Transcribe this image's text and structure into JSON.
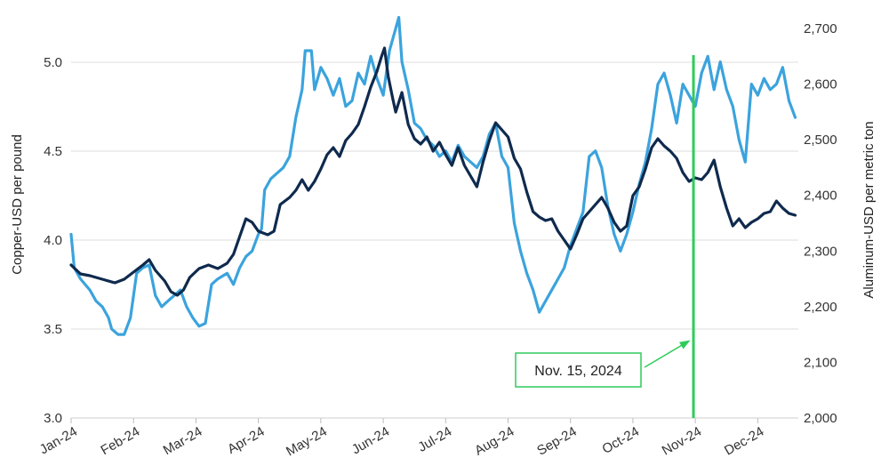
{
  "chart_data": {
    "type": "line",
    "title": "",
    "ylabel": "Copper-USD per pound",
    "y2label": "Aluminum-USD per metric ton",
    "ylim": [
      3.0,
      5.2
    ],
    "y2lim": [
      2000,
      2700
    ],
    "yticks": [
      "3.0",
      "3.5",
      "4.0",
      "4.5",
      "5.0"
    ],
    "y2ticks": [
      "2,000",
      "2,100",
      "2,200",
      "2,300",
      "2,400",
      "2,500",
      "2,600",
      "2,700"
    ],
    "xticks": [
      "Jan-24",
      "Feb-24",
      "Mar-24",
      "Apr-24",
      "May-24",
      "Jun-24",
      "Jul-24",
      "Aug-24",
      "Sep-24",
      "Oct-24",
      "Nov-24",
      "Dec-24"
    ],
    "grid": "horizontal",
    "legend": "none",
    "colors": {
      "copper": "#0f2a4d",
      "aluminum": "#3ba3dd",
      "annotation": "#2ecc5a",
      "grid": "#dddddd"
    },
    "series": [
      {
        "axis": "left",
        "color": "#0f2a4d",
        "points": [
          [
            0,
            3.86
          ],
          [
            0.15,
            3.81
          ],
          [
            0.3,
            3.8
          ],
          [
            0.5,
            3.78
          ],
          [
            0.7,
            3.76
          ],
          [
            0.85,
            3.78
          ],
          [
            1.0,
            3.82
          ],
          [
            1.15,
            3.86
          ],
          [
            1.25,
            3.89
          ],
          [
            1.35,
            3.83
          ],
          [
            1.5,
            3.77
          ],
          [
            1.6,
            3.71
          ],
          [
            1.7,
            3.69
          ],
          [
            1.8,
            3.72
          ],
          [
            1.9,
            3.79
          ],
          [
            2.05,
            3.84
          ],
          [
            2.2,
            3.86
          ],
          [
            2.35,
            3.84
          ],
          [
            2.5,
            3.87
          ],
          [
            2.6,
            3.92
          ],
          [
            2.7,
            4.02
          ],
          [
            2.8,
            4.12
          ],
          [
            2.9,
            4.1
          ],
          [
            3.0,
            4.05
          ],
          [
            3.15,
            4.03
          ],
          [
            3.25,
            4.05
          ],
          [
            3.35,
            4.2
          ],
          [
            3.5,
            4.24
          ],
          [
            3.6,
            4.28
          ],
          [
            3.7,
            4.34
          ],
          [
            3.8,
            4.28
          ],
          [
            3.9,
            4.33
          ],
          [
            4.0,
            4.4
          ],
          [
            4.1,
            4.48
          ],
          [
            4.2,
            4.52
          ],
          [
            4.3,
            4.47
          ],
          [
            4.4,
            4.56
          ],
          [
            4.5,
            4.6
          ],
          [
            4.6,
            4.65
          ],
          [
            4.7,
            4.75
          ],
          [
            4.8,
            4.86
          ],
          [
            4.9,
            4.95
          ],
          [
            4.97,
            5.03
          ],
          [
            5.02,
            5.08
          ],
          [
            5.08,
            4.92
          ],
          [
            5.15,
            4.8
          ],
          [
            5.2,
            4.72
          ],
          [
            5.3,
            4.83
          ],
          [
            5.4,
            4.65
          ],
          [
            5.5,
            4.57
          ],
          [
            5.6,
            4.54
          ],
          [
            5.7,
            4.58
          ],
          [
            5.8,
            4.5
          ],
          [
            5.9,
            4.55
          ],
          [
            6.0,
            4.48
          ],
          [
            6.1,
            4.42
          ],
          [
            6.2,
            4.52
          ],
          [
            6.3,
            4.42
          ],
          [
            6.4,
            4.36
          ],
          [
            6.5,
            4.3
          ],
          [
            6.6,
            4.44
          ],
          [
            6.7,
            4.56
          ],
          [
            6.8,
            4.66
          ],
          [
            6.9,
            4.62
          ],
          [
            7.0,
            4.58
          ],
          [
            7.1,
            4.46
          ],
          [
            7.2,
            4.4
          ],
          [
            7.3,
            4.27
          ],
          [
            7.4,
            4.16
          ],
          [
            7.5,
            4.13
          ],
          [
            7.6,
            4.11
          ],
          [
            7.7,
            4.12
          ],
          [
            7.8,
            4.05
          ],
          [
            7.9,
            4.0
          ],
          [
            8.0,
            3.95
          ],
          [
            8.1,
            4.03
          ],
          [
            8.2,
            4.12
          ],
          [
            8.3,
            4.16
          ],
          [
            8.4,
            4.2
          ],
          [
            8.5,
            4.24
          ],
          [
            8.6,
            4.18
          ],
          [
            8.7,
            4.1
          ],
          [
            8.8,
            4.05
          ],
          [
            8.9,
            4.08
          ],
          [
            9.0,
            4.25
          ],
          [
            9.1,
            4.3
          ],
          [
            9.2,
            4.4
          ],
          [
            9.3,
            4.52
          ],
          [
            9.4,
            4.57
          ],
          [
            9.5,
            4.53
          ],
          [
            9.6,
            4.5
          ],
          [
            9.7,
            4.46
          ],
          [
            9.8,
            4.38
          ],
          [
            9.9,
            4.33
          ],
          [
            10.0,
            4.35
          ],
          [
            10.1,
            4.34
          ],
          [
            10.2,
            4.38
          ],
          [
            10.3,
            4.45
          ],
          [
            10.4,
            4.3
          ],
          [
            10.5,
            4.18
          ],
          [
            10.6,
            4.08
          ],
          [
            10.7,
            4.12
          ],
          [
            10.8,
            4.07
          ],
          [
            10.9,
            4.1
          ],
          [
            11.0,
            4.12
          ],
          [
            11.1,
            4.15
          ],
          [
            11.2,
            4.16
          ],
          [
            11.3,
            4.22
          ],
          [
            11.4,
            4.18
          ],
          [
            11.5,
            4.15
          ],
          [
            11.6,
            4.14
          ]
        ]
      },
      {
        "axis": "right",
        "color": "#3ba3dd",
        "points": [
          [
            0,
            2330
          ],
          [
            0.05,
            2270
          ],
          [
            0.15,
            2250
          ],
          [
            0.3,
            2230
          ],
          [
            0.4,
            2210
          ],
          [
            0.5,
            2200
          ],
          [
            0.6,
            2180
          ],
          [
            0.65,
            2160
          ],
          [
            0.75,
            2150
          ],
          [
            0.85,
            2150
          ],
          [
            0.95,
            2180
          ],
          [
            1.05,
            2260
          ],
          [
            1.15,
            2270
          ],
          [
            1.25,
            2275
          ],
          [
            1.35,
            2220
          ],
          [
            1.45,
            2200
          ],
          [
            1.55,
            2210
          ],
          [
            1.65,
            2220
          ],
          [
            1.75,
            2230
          ],
          [
            1.85,
            2200
          ],
          [
            1.95,
            2180
          ],
          [
            2.05,
            2165
          ],
          [
            2.15,
            2170
          ],
          [
            2.25,
            2240
          ],
          [
            2.35,
            2250
          ],
          [
            2.5,
            2260
          ],
          [
            2.6,
            2240
          ],
          [
            2.7,
            2270
          ],
          [
            2.8,
            2290
          ],
          [
            2.9,
            2300
          ],
          [
            3.0,
            2330
          ],
          [
            3.05,
            2340
          ],
          [
            3.1,
            2410
          ],
          [
            3.2,
            2430
          ],
          [
            3.3,
            2440
          ],
          [
            3.4,
            2450
          ],
          [
            3.5,
            2470
          ],
          [
            3.6,
            2540
          ],
          [
            3.7,
            2590
          ],
          [
            3.75,
            2660
          ],
          [
            3.8,
            2660
          ],
          [
            3.85,
            2660
          ],
          [
            3.9,
            2590
          ],
          [
            4.0,
            2630
          ],
          [
            4.1,
            2610
          ],
          [
            4.2,
            2580
          ],
          [
            4.3,
            2610
          ],
          [
            4.4,
            2560
          ],
          [
            4.5,
            2570
          ],
          [
            4.6,
            2620
          ],
          [
            4.7,
            2600
          ],
          [
            4.8,
            2650
          ],
          [
            4.9,
            2610
          ],
          [
            5.0,
            2580
          ],
          [
            5.1,
            2660
          ],
          [
            5.2,
            2700
          ],
          [
            5.25,
            2720
          ],
          [
            5.3,
            2640
          ],
          [
            5.4,
            2590
          ],
          [
            5.5,
            2530
          ],
          [
            5.6,
            2520
          ],
          [
            5.7,
            2500
          ],
          [
            5.8,
            2490
          ],
          [
            5.9,
            2470
          ],
          [
            6.0,
            2480
          ],
          [
            6.1,
            2460
          ],
          [
            6.2,
            2490
          ],
          [
            6.3,
            2470
          ],
          [
            6.4,
            2460
          ],
          [
            6.5,
            2450
          ],
          [
            6.6,
            2470
          ],
          [
            6.7,
            2510
          ],
          [
            6.8,
            2530
          ],
          [
            6.9,
            2470
          ],
          [
            7.0,
            2450
          ],
          [
            7.1,
            2350
          ],
          [
            7.2,
            2300
          ],
          [
            7.3,
            2260
          ],
          [
            7.4,
            2230
          ],
          [
            7.5,
            2190
          ],
          [
            7.6,
            2210
          ],
          [
            7.7,
            2230
          ],
          [
            7.8,
            2250
          ],
          [
            7.9,
            2270
          ],
          [
            8.0,
            2310
          ],
          [
            8.1,
            2340
          ],
          [
            8.2,
            2370
          ],
          [
            8.3,
            2470
          ],
          [
            8.4,
            2480
          ],
          [
            8.5,
            2450
          ],
          [
            8.6,
            2380
          ],
          [
            8.7,
            2330
          ],
          [
            8.8,
            2300
          ],
          [
            8.9,
            2330
          ],
          [
            9.0,
            2370
          ],
          [
            9.1,
            2420
          ],
          [
            9.2,
            2460
          ],
          [
            9.3,
            2520
          ],
          [
            9.4,
            2600
          ],
          [
            9.5,
            2620
          ],
          [
            9.6,
            2580
          ],
          [
            9.7,
            2530
          ],
          [
            9.8,
            2600
          ],
          [
            9.9,
            2580
          ],
          [
            10.0,
            2560
          ],
          [
            10.1,
            2620
          ],
          [
            10.2,
            2650
          ],
          [
            10.3,
            2590
          ],
          [
            10.4,
            2640
          ],
          [
            10.5,
            2590
          ],
          [
            10.6,
            2560
          ],
          [
            10.7,
            2500
          ],
          [
            10.8,
            2460
          ],
          [
            10.9,
            2600
          ],
          [
            11.0,
            2580
          ],
          [
            11.1,
            2610
          ],
          [
            11.2,
            2590
          ],
          [
            11.3,
            2600
          ],
          [
            11.4,
            2630
          ],
          [
            11.5,
            2570
          ],
          [
            11.6,
            2540
          ]
        ]
      }
    ],
    "annotation": {
      "label": "Nov. 15, 2024",
      "x_month": 9.97
    }
  }
}
